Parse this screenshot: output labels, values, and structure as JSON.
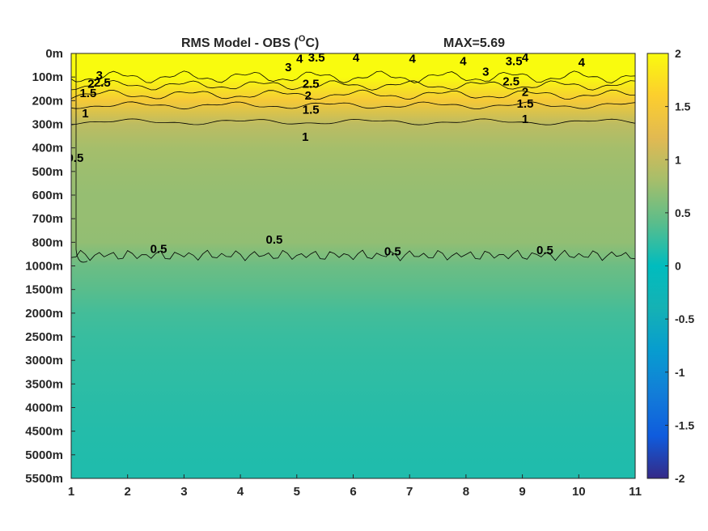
{
  "chart_data": {
    "type": "heatmap",
    "title": "RMS Model - OBS (°C)",
    "title_main": "RMS Model - OBS (",
    "title_sup": "O",
    "title_end": "C)",
    "annotation": "MAX=5.69",
    "x_ticks": [
      1,
      2,
      3,
      4,
      5,
      6,
      7,
      8,
      9,
      10,
      11
    ],
    "xlim": [
      1,
      11
    ],
    "y_tick_labels": [
      "0m",
      "100m",
      "200m",
      "300m",
      "400m",
      "500m",
      "600m",
      "700m",
      "800m",
      "1000m",
      "1500m",
      "2000m",
      "2500m",
      "3000m",
      "3500m",
      "4000m",
      "4500m",
      "5000m",
      "5500m"
    ],
    "y_reversed": true,
    "colorbar": {
      "ticks": [
        -2,
        -1.5,
        -1,
        -0.5,
        0,
        0.5,
        1,
        1.5,
        2
      ],
      "tick_labels": [
        "-2",
        "-1.5",
        "-1",
        "-0.5",
        "0",
        "0.5",
        "1",
        "1.5",
        "2"
      ],
      "clim": [
        -2,
        2
      ],
      "colormap": "parula"
    },
    "depth_profile": [
      {
        "depth": "0m",
        "value": 2.0
      },
      {
        "depth": "100m",
        "value": 2.0
      },
      {
        "depth": "200m",
        "value": 1.5
      },
      {
        "depth": "300m",
        "value": 0.95
      },
      {
        "depth": "400m",
        "value": 0.8
      },
      {
        "depth": "500m",
        "value": 0.75
      },
      {
        "depth": "600m",
        "value": 0.72
      },
      {
        "depth": "700m",
        "value": 0.72
      },
      {
        "depth": "800m",
        "value": 0.7
      },
      {
        "depth": "1000m",
        "value": 0.5
      },
      {
        "depth": "1500m",
        "value": 0.4
      },
      {
        "depth": "2000m",
        "value": 0.3
      },
      {
        "depth": "2500m",
        "value": 0.25
      },
      {
        "depth": "3000m",
        "value": 0.22
      },
      {
        "depth": "3500m",
        "value": 0.2
      },
      {
        "depth": "4000m",
        "value": 0.18
      },
      {
        "depth": "4500m",
        "value": 0.16
      },
      {
        "depth": "5000m",
        "value": 0.15
      },
      {
        "depth": "5500m",
        "value": 0.14
      }
    ],
    "contour_labels": [
      {
        "text": "3",
        "x": 1.5,
        "depth_index": 1.1
      },
      {
        "text": "2.5",
        "x": 1.55,
        "depth_index": 1.4
      },
      {
        "text": "2",
        "x": 1.35,
        "depth_index": 1.45
      },
      {
        "text": "1.5",
        "x": 1.3,
        "depth_index": 1.85
      },
      {
        "text": "1",
        "x": 1.25,
        "depth_index": 2.7
      },
      {
        "text": "0.5",
        "x": 1.07,
        "depth_index": 4.6
      },
      {
        "text": "3",
        "x": 4.85,
        "depth_index": 0.75
      },
      {
        "text": "4",
        "x": 5.05,
        "depth_index": 0.4
      },
      {
        "text": "3.5",
        "x": 5.35,
        "depth_index": 0.35
      },
      {
        "text": "4",
        "x": 6.05,
        "depth_index": 0.35
      },
      {
        "text": "4",
        "x": 7.05,
        "depth_index": 0.4
      },
      {
        "text": "4",
        "x": 7.95,
        "depth_index": 0.5
      },
      {
        "text": "3",
        "x": 8.35,
        "depth_index": 0.95
      },
      {
        "text": "3.5",
        "x": 8.85,
        "depth_index": 0.5
      },
      {
        "text": "4",
        "x": 9.05,
        "depth_index": 0.35
      },
      {
        "text": "4",
        "x": 10.05,
        "depth_index": 0.55
      },
      {
        "text": "2.5",
        "x": 5.25,
        "depth_index": 1.45
      },
      {
        "text": "2",
        "x": 5.2,
        "depth_index": 1.95
      },
      {
        "text": "1.5",
        "x": 5.25,
        "depth_index": 2.55
      },
      {
        "text": "1",
        "x": 5.15,
        "depth_index": 3.7
      },
      {
        "text": "2.5",
        "x": 8.8,
        "depth_index": 1.35
      },
      {
        "text": "2",
        "x": 9.05,
        "depth_index": 1.8
      },
      {
        "text": "1.5",
        "x": 9.05,
        "depth_index": 2.3
      },
      {
        "text": "1",
        "x": 9.05,
        "depth_index": 2.95
      },
      {
        "text": "0.5",
        "x": 2.55,
        "depth_index": 8.45
      },
      {
        "text": "0.5",
        "x": 4.6,
        "depth_index": 8.05
      },
      {
        "text": "0.5",
        "x": 6.7,
        "depth_index": 8.55
      },
      {
        "text": "0.5",
        "x": 9.4,
        "depth_index": 8.5
      }
    ]
  }
}
